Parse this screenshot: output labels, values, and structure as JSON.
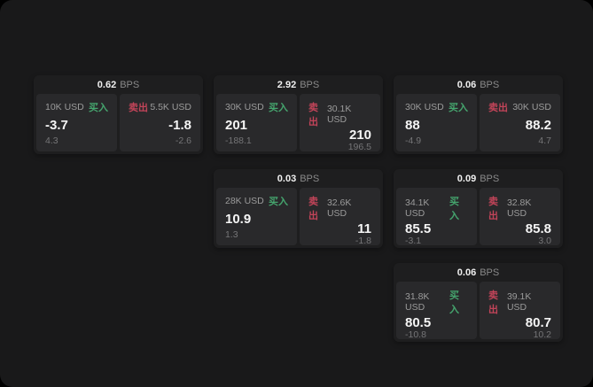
{
  "labels": {
    "bps_unit": "BPS",
    "buy": "买入",
    "sell": "卖出"
  },
  "colors": {
    "page_background": "#000000",
    "panel_background": "#19191a",
    "card_background": "#1e1e1f",
    "tile_background": "#29292b",
    "buy_green": "#45a56e",
    "sell_red": "#c24459",
    "price_white": "#f5f5f5",
    "muted_gray": "#9b9b9b"
  },
  "cards": [
    {
      "bps": "0.62",
      "buy": {
        "amount": "10K USD",
        "price": "-3.7",
        "delta": "4.3"
      },
      "sell": {
        "amount": "5.5K USD",
        "price": "-1.8",
        "delta": "-2.6"
      }
    },
    {
      "bps": "2.92",
      "buy": {
        "amount": "30K USD",
        "price": "201",
        "delta": "-188.1"
      },
      "sell": {
        "amount": "30.1K USD",
        "price": "210",
        "delta": "196.5"
      }
    },
    {
      "bps": "0.06",
      "buy": {
        "amount": "30K USD",
        "price": "88",
        "delta": "-4.9"
      },
      "sell": {
        "amount": "30K USD",
        "price": "88.2",
        "delta": "4.7"
      }
    },
    {
      "bps": "0.03",
      "buy": {
        "amount": "28K USD",
        "price": "10.9",
        "delta": "1.3"
      },
      "sell": {
        "amount": "32.6K USD",
        "price": "11",
        "delta": "-1.8"
      }
    },
    {
      "bps": "0.09",
      "buy": {
        "amount": "34.1K USD",
        "price": "85.5",
        "delta": "-3.1"
      },
      "sell": {
        "amount": "32.8K USD",
        "price": "85.8",
        "delta": "3.0"
      }
    },
    {
      "bps": "0.06",
      "buy": {
        "amount": "31.8K USD",
        "price": "80.5",
        "delta": "-10.8"
      },
      "sell": {
        "amount": "39.1K USD",
        "price": "80.7",
        "delta": "10.2"
      }
    }
  ]
}
